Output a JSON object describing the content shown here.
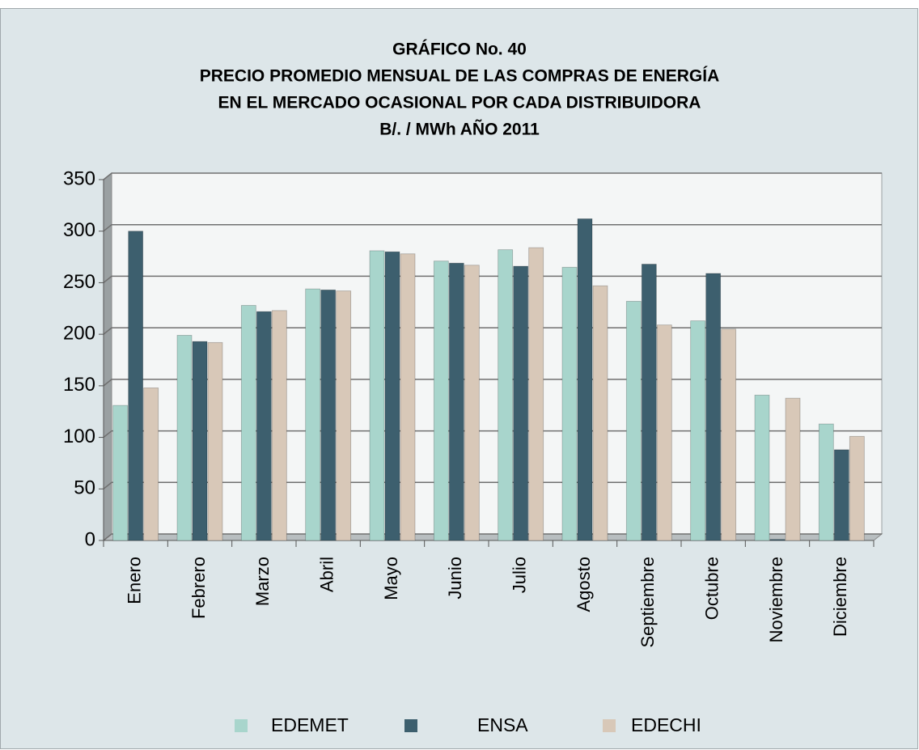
{
  "chart_data": {
    "type": "bar",
    "title": [
      "GRÁFICO  No.  40",
      "PRECIO PROMEDIO MENSUAL  DE LAS COMPRAS DE ENERGÍA",
      "EN EL MERCADO OCASIONAL POR  CADA  DISTRIBUIDORA",
      "B/.  /  MWh      AÑO   2011"
    ],
    "categories": [
      "Enero",
      "Febrero",
      "Marzo",
      "Abril",
      "Mayo",
      "Junio",
      "Julio",
      "Agosto",
      "Septiembre",
      "Octubre",
      "Noviembre",
      "Diciembre"
    ],
    "series": [
      {
        "name": "EDEMET",
        "color": "#a8d5cc",
        "values": [
          131,
          199,
          228,
          244,
          281,
          271,
          282,
          265,
          232,
          213,
          141,
          113
        ]
      },
      {
        "name": "ENSA",
        "color": "#3d5f6e",
        "values": [
          300,
          193,
          222,
          243,
          280,
          269,
          266,
          312,
          268,
          259,
          1,
          88
        ]
      },
      {
        "name": "EDECHI",
        "color": "#d8c8b8",
        "values": [
          148,
          192,
          223,
          242,
          278,
          267,
          284,
          247,
          209,
          205,
          138,
          101
        ]
      }
    ],
    "ylim": [
      0,
      350
    ],
    "yticks": [
      0,
      50,
      100,
      150,
      200,
      250,
      300,
      350
    ],
    "grid": true,
    "legend": "bottom"
  }
}
